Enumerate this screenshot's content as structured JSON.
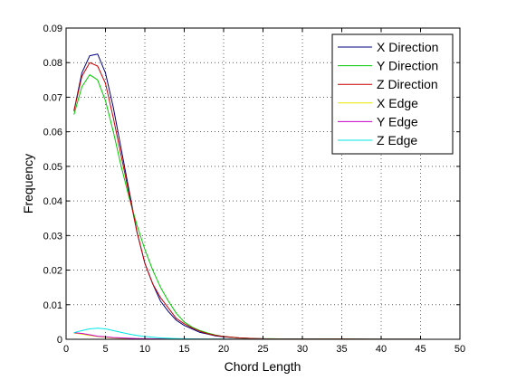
{
  "chart_data": {
    "type": "line",
    "xlabel": "Chord Length",
    "ylabel": "Frequency",
    "xlim": [
      0,
      50
    ],
    "ylim": [
      0,
      0.09
    ],
    "xticks": [
      0,
      5,
      10,
      15,
      20,
      25,
      30,
      35,
      40,
      45,
      50
    ],
    "yticks": [
      0,
      0.01,
      0.02,
      0.03,
      0.04,
      0.05,
      0.06,
      0.07,
      0.08,
      0.09
    ],
    "xtick_labels": [
      "0",
      "5",
      "10",
      "15",
      "20",
      "25",
      "30",
      "35",
      "40",
      "45",
      "50"
    ],
    "ytick_labels": [
      "0",
      "0.01",
      "0.02",
      "0.03",
      "0.04",
      "0.05",
      "0.06",
      "0.07",
      "0.08",
      "0.09"
    ],
    "grid": true,
    "legend_position": "top-right",
    "series": [
      {
        "name": "X Direction",
        "color": "#00007f",
        "x": [
          1,
          2,
          3,
          4,
          5,
          6,
          7,
          8,
          9,
          10,
          11,
          12,
          13,
          14,
          15,
          16,
          17,
          18,
          19,
          20,
          22,
          24,
          26,
          28,
          30,
          35,
          40,
          45
        ],
        "y": [
          0.066,
          0.077,
          0.082,
          0.0825,
          0.077,
          0.067,
          0.055,
          0.043,
          0.031,
          0.022,
          0.016,
          0.011,
          0.008,
          0.0055,
          0.004,
          0.003,
          0.002,
          0.0015,
          0.001,
          0.0007,
          0.0004,
          0.0002,
          0.0001,
          0.0001,
          0.0001,
          5e-05,
          3e-05,
          2e-05
        ]
      },
      {
        "name": "Y Direction",
        "color": "#00c800",
        "x": [
          1,
          2,
          3,
          4,
          5,
          6,
          7,
          8,
          9,
          10,
          11,
          12,
          13,
          14,
          15,
          16,
          17,
          18,
          19,
          20,
          22,
          24,
          26,
          28,
          30,
          35,
          40,
          45
        ],
        "y": [
          0.065,
          0.073,
          0.0765,
          0.075,
          0.069,
          0.06,
          0.05,
          0.041,
          0.033,
          0.026,
          0.02,
          0.015,
          0.011,
          0.0075,
          0.005,
          0.0035,
          0.0025,
          0.0018,
          0.0012,
          0.0008,
          0.0004,
          0.0002,
          0.00015,
          0.0001,
          0.0001,
          5e-05,
          3e-05,
          2e-05
        ]
      },
      {
        "name": "Z Direction",
        "color": "#c80000",
        "x": [
          1,
          2,
          3,
          4,
          5,
          6,
          7,
          8,
          9,
          10,
          11,
          12,
          13,
          14,
          15,
          16,
          17,
          18,
          19,
          20,
          22,
          24,
          26,
          28,
          30,
          35,
          40,
          45
        ],
        "y": [
          0.066,
          0.076,
          0.08,
          0.079,
          0.074,
          0.064,
          0.053,
          0.042,
          0.031,
          0.022,
          0.016,
          0.012,
          0.009,
          0.006,
          0.0045,
          0.0033,
          0.0023,
          0.0016,
          0.0011,
          0.0008,
          0.0004,
          0.0002,
          0.0001,
          0.0001,
          0.0001,
          5e-05,
          3e-05,
          2e-05
        ]
      },
      {
        "name": "X Edge",
        "color": "#e6e600",
        "x": [
          1,
          2,
          3,
          4,
          5,
          6,
          7,
          8,
          9,
          10,
          12,
          14,
          16,
          18,
          20,
          25,
          30,
          35,
          40,
          45
        ],
        "y": [
          0.0018,
          0.0015,
          0.0011,
          0.0008,
          0.0006,
          0.0004,
          0.0003,
          0.0002,
          0.00015,
          0.0001,
          6e-05,
          4e-05,
          3e-05,
          2e-05,
          2e-05,
          1e-05,
          1e-05,
          1e-05,
          1e-05,
          1e-05
        ]
      },
      {
        "name": "Y Edge",
        "color": "#c800c8",
        "x": [
          1,
          2,
          3,
          4,
          5,
          6,
          7,
          8,
          9,
          10,
          12,
          14,
          16,
          18,
          20,
          25,
          30,
          35,
          40,
          45
        ],
        "y": [
          0.0019,
          0.0017,
          0.0013,
          0.0009,
          0.0007,
          0.0005,
          0.0004,
          0.0003,
          0.0002,
          0.00015,
          0.0001,
          6e-05,
          4e-05,
          3e-05,
          2e-05,
          1e-05,
          1e-05,
          1e-05,
          1e-05,
          1e-05
        ]
      },
      {
        "name": "Z Edge",
        "color": "#00e6e6",
        "x": [
          1,
          2,
          3,
          4,
          5,
          6,
          7,
          8,
          9,
          10,
          11,
          12,
          14,
          16,
          18,
          20,
          25,
          30,
          35,
          40,
          45
        ],
        "y": [
          0.0019,
          0.0025,
          0.003,
          0.0032,
          0.003,
          0.0025,
          0.002,
          0.0015,
          0.0011,
          0.0008,
          0.0006,
          0.0004,
          0.0002,
          0.0001,
          8e-05,
          5e-05,
          3e-05,
          2e-05,
          1e-05,
          1e-05,
          1e-05
        ]
      }
    ]
  }
}
